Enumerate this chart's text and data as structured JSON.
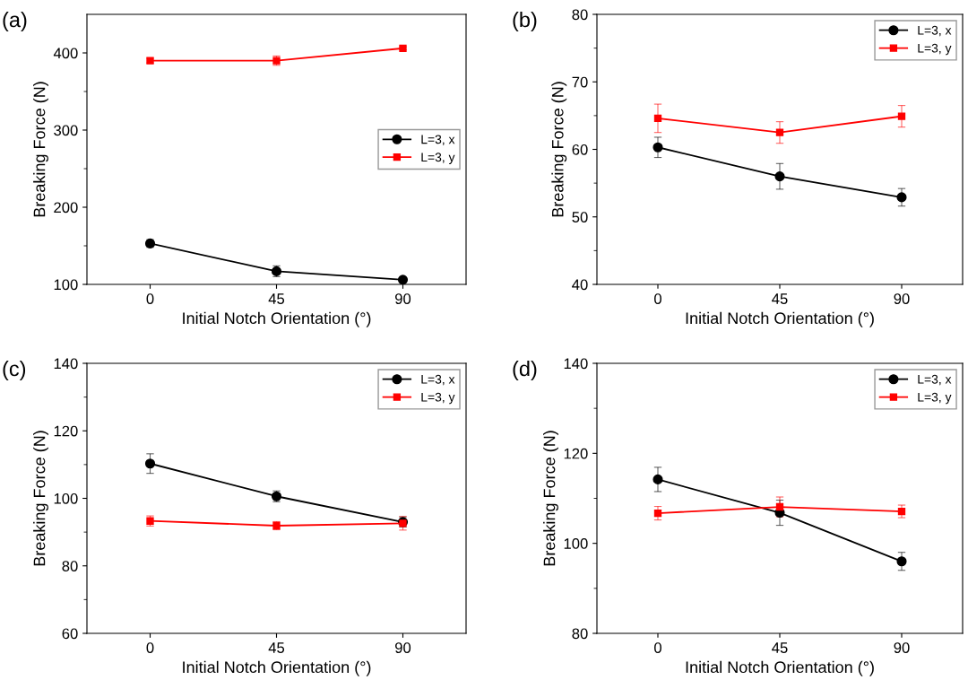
{
  "chart_data": [
    {
      "type": "line",
      "title": "(a)",
      "xlabel": "Initial Notch Orientation (°)",
      "ylabel": "Breaking Force (N)",
      "x": [
        0,
        45,
        90
      ],
      "xlim": [
        -22.5,
        112.5
      ],
      "xticks": [
        0,
        45,
        90
      ],
      "ylim": [
        100,
        450
      ],
      "yticks": [
        100,
        200,
        300,
        400
      ],
      "legend": "right",
      "line_style": "solid",
      "grid": false,
      "series": [
        {
          "name": "L=3, x",
          "color": "#000000",
          "marker": "circle",
          "values": [
            153,
            117,
            106
          ],
          "errors": [
            5,
            7,
            2
          ]
        },
        {
          "name": "L=3, y",
          "color": "#ff0000",
          "marker": "square",
          "values": [
            390,
            390,
            406
          ],
          "errors": [
            3,
            6,
            2
          ]
        }
      ]
    },
    {
      "type": "line",
      "title": "(b)",
      "xlabel": "Initial Notch Orientation (°)",
      "ylabel": "Breaking Force (N)",
      "x": [
        0,
        45,
        90
      ],
      "xlim": [
        -22.5,
        112.5
      ],
      "xticks": [
        0,
        45,
        90
      ],
      "ylim": [
        40,
        80
      ],
      "yticks": [
        40,
        50,
        60,
        70,
        80
      ],
      "legend": "top right",
      "line_style": "solid",
      "grid": false,
      "series": [
        {
          "name": "L=3, x",
          "color": "#000000",
          "marker": "circle",
          "values": [
            60.3,
            56.0,
            52.9
          ],
          "errors": [
            1.5,
            1.9,
            1.3
          ]
        },
        {
          "name": "L=3, y",
          "color": "#ff0000",
          "marker": "square",
          "values": [
            64.6,
            62.5,
            64.9
          ],
          "errors": [
            2.1,
            1.6,
            1.6
          ]
        }
      ]
    },
    {
      "type": "line",
      "title": "(c)",
      "xlabel": "Initial Notch Orientation (°)",
      "ylabel": "Breaking Force (N)",
      "x": [
        0,
        45,
        90
      ],
      "xlim": [
        -22.5,
        112.5
      ],
      "xticks": [
        0,
        45,
        90
      ],
      "ylim": [
        60,
        140
      ],
      "yticks": [
        60,
        80,
        100,
        120,
        140
      ],
      "legend": "top right",
      "line_style": "solid",
      "grid": false,
      "series": [
        {
          "name": "L=3, x",
          "color": "#000000",
          "marker": "circle",
          "values": [
            110.3,
            100.6,
            93.0
          ],
          "errors": [
            2.9,
            1.6,
            1.5
          ]
        },
        {
          "name": "L=3, y",
          "color": "#ff0000",
          "marker": "square",
          "values": [
            93.3,
            91.9,
            92.6
          ],
          "errors": [
            1.5,
            1.2,
            2.0
          ]
        }
      ]
    },
    {
      "type": "line",
      "title": "(d)",
      "xlabel": "Initial Notch Orientation (°)",
      "ylabel": "Breaking Force (N)",
      "x": [
        0,
        45,
        90
      ],
      "xlim": [
        -22.5,
        112.5
      ],
      "xticks": [
        0,
        45,
        90
      ],
      "ylim": [
        80,
        140
      ],
      "yticks": [
        80,
        100,
        120,
        140
      ],
      "legend": "top right",
      "line_style": "solid",
      "grid": false,
      "series": [
        {
          "name": "L=3, x",
          "color": "#000000",
          "marker": "circle",
          "values": [
            114.2,
            106.8,
            96.0
          ],
          "errors": [
            2.7,
            2.8,
            2.0
          ]
        },
        {
          "name": "L=3, y",
          "color": "#ff0000",
          "marker": "square",
          "values": [
            106.7,
            108.1,
            107.1
          ],
          "errors": [
            1.5,
            2.2,
            1.4
          ]
        }
      ]
    }
  ]
}
